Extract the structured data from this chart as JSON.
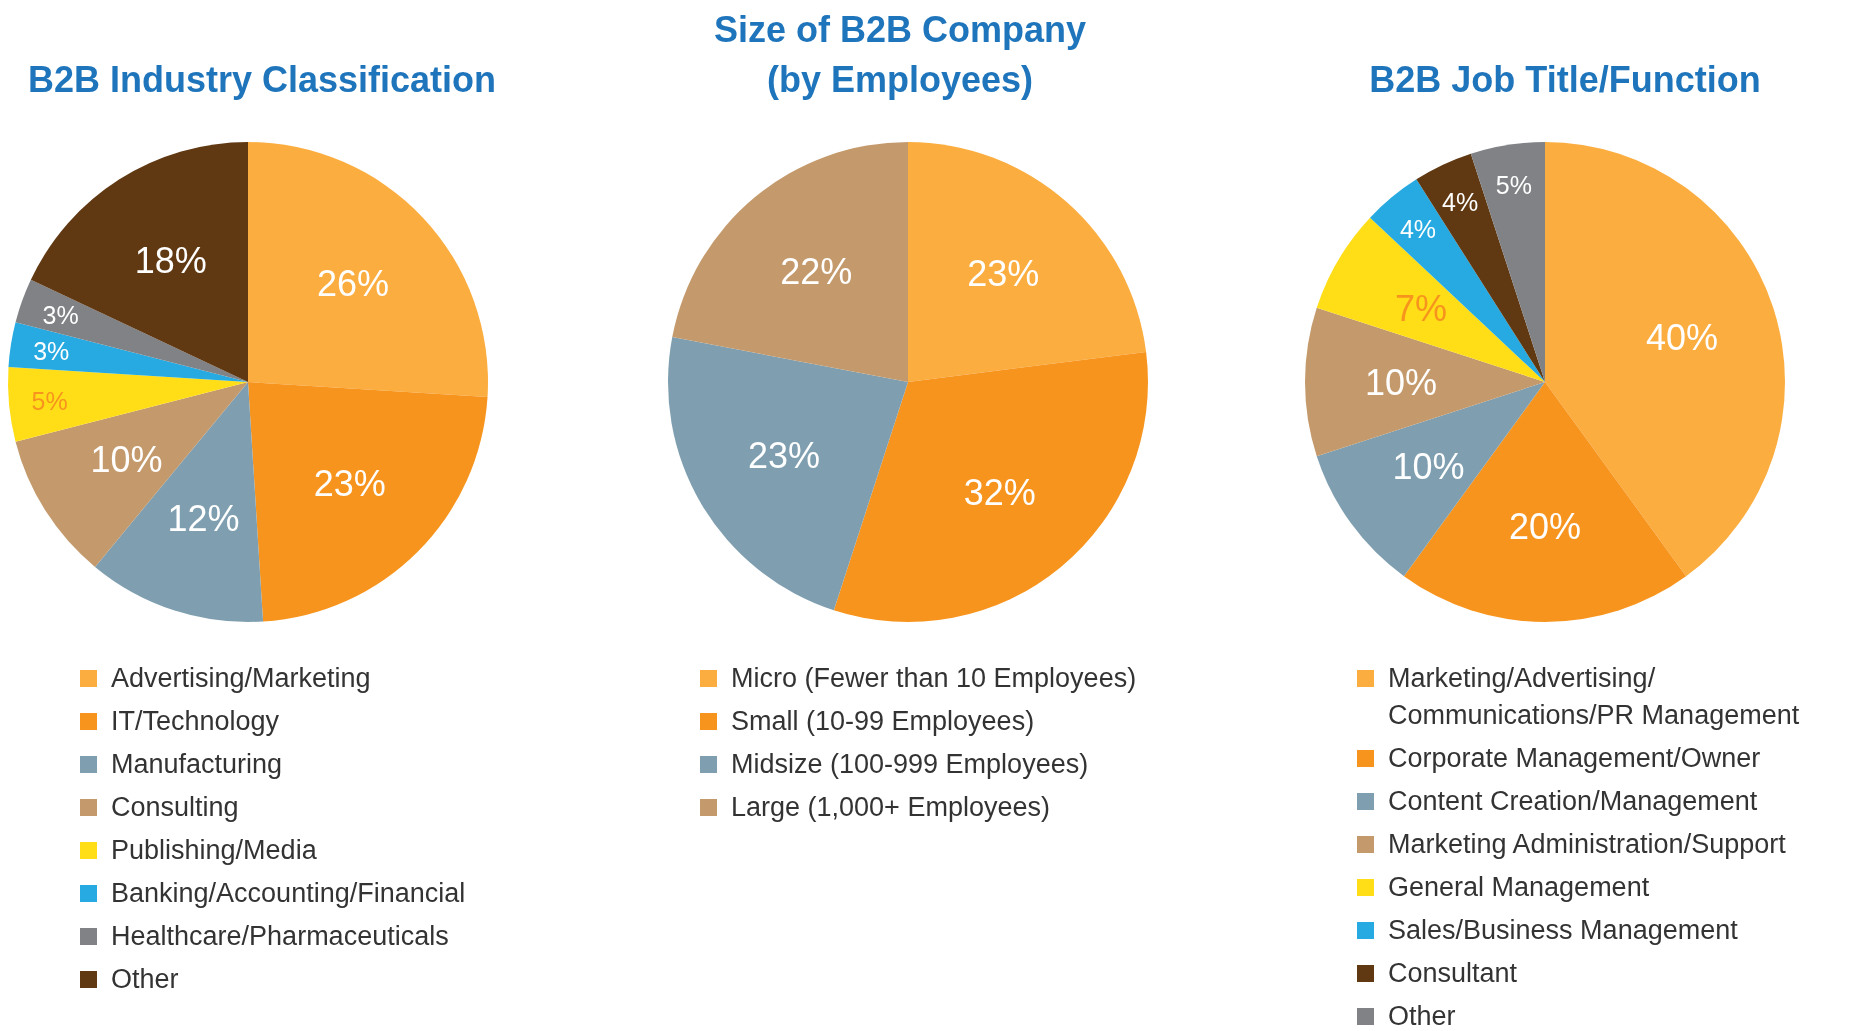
{
  "chart_data": [
    {
      "type": "pie",
      "title": "B2B Industry Classification",
      "categories": [
        "Advertising/Marketing",
        "IT/Technology",
        "Manufacturing",
        "Consulting",
        "Publishing/Media",
        "Banking/Accounting/Financial",
        "Healthcare/Pharmaceuticals",
        "Other"
      ],
      "values": [
        26,
        23,
        12,
        10,
        5,
        3,
        3,
        18
      ],
      "value_labels": [
        "26%",
        "23%",
        "12%",
        "10%",
        "5%",
        "3%",
        "3%",
        "18%"
      ],
      "colors": [
        "#fbad3f",
        "#f7941d",
        "#7f9fb0",
        "#c49a6c",
        "#ffde17",
        "#27aae1",
        "#808285",
        "#603913"
      ],
      "legend": "bottom"
    },
    {
      "type": "pie",
      "title": "Size of B2B Company (by Employees)",
      "categories": [
        "Micro (Fewer than 10 Employees)",
        "Small (10-99 Employees)",
        "Midsize (100-999 Employees)",
        "Large (1,000+ Employees)"
      ],
      "values": [
        23,
        32,
        23,
        22
      ],
      "value_labels": [
        "23%",
        "32%",
        "23%",
        "22%"
      ],
      "colors": [
        "#fbad3f",
        "#f7941d",
        "#7f9fb0",
        "#c49a6c"
      ],
      "legend": "bottom"
    },
    {
      "type": "pie",
      "title": "B2B Job Title/Function",
      "categories": [
        "Marketing/Advertising/Communications/PR Management",
        "Corporate Management/Owner",
        "Content Creation/Management",
        "Marketing Administration/Support",
        "General Management",
        "Sales/Business Management",
        "Consultant",
        "Other"
      ],
      "values": [
        40,
        20,
        10,
        10,
        7,
        4,
        4,
        5
      ],
      "value_labels": [
        "40%",
        "20%",
        "10%",
        "10%",
        "7%",
        "4%",
        "4%",
        "5%"
      ],
      "colors": [
        "#fbad3f",
        "#f7941d",
        "#7f9fb0",
        "#c49a6c",
        "#ffde17",
        "#27aae1",
        "#603913",
        "#808285"
      ],
      "legend": "bottom"
    }
  ]
}
